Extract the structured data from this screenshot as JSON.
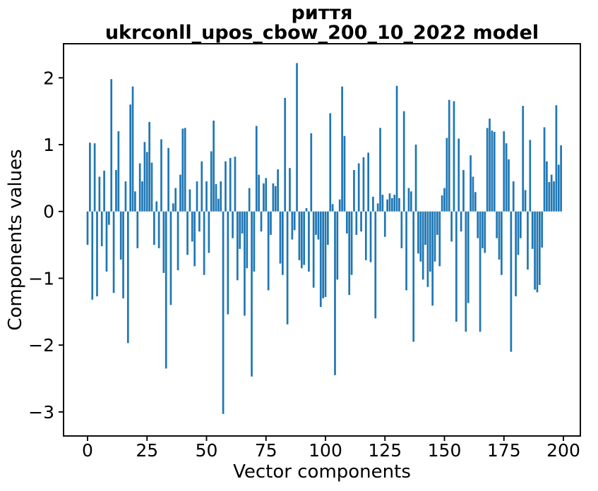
{
  "figure": {
    "background": "#ffffff",
    "spine_color": "#000000",
    "text_color": "#000000"
  },
  "chart_data": {
    "type": "bar",
    "title_line1": "риття",
    "title_line2": "ukrconll_upos_cbow_200_10_2022 model",
    "xlabel": "Vector components",
    "ylabel": "Components values",
    "bar_color": "#1f77b4",
    "grid": false,
    "legend_position": "none",
    "x_ticks": [
      0,
      25,
      50,
      75,
      100,
      125,
      150,
      175,
      200
    ],
    "y_ticks": [
      2,
      1,
      0,
      -1,
      -2,
      -3
    ],
    "xlim": [
      -10.09,
      207.12
    ],
    "ylim": [
      -3.36,
      2.51
    ],
    "n_components": 200,
    "values": [
      -0.5,
      1.03,
      -1.32,
      1.02,
      -1.27,
      0.52,
      -0.52,
      0.61,
      -0.9,
      -0.2,
      1.98,
      -1.22,
      0.62,
      1.2,
      -0.72,
      -1.3,
      0.45,
      -1.97,
      1.6,
      1.87,
      0.3,
      -0.55,
      0.72,
      0.45,
      1.04,
      0.89,
      1.34,
      0.73,
      -0.5,
      0.15,
      -0.55,
      1.08,
      -0.92,
      -2.35,
      0.95,
      -1.4,
      0.12,
      0.35,
      -0.88,
      0.55,
      1.24,
      1.25,
      -0.65,
      0.33,
      -0.45,
      -0.82,
      0.45,
      -0.3,
      0.75,
      -0.95,
      0.45,
      -0.62,
      0.9,
      1.36,
      0.41,
      0.19,
      0.45,
      -3.03,
      0.75,
      -1.54,
      0.8,
      -0.4,
      0.82,
      -1.03,
      -0.56,
      -0.33,
      -1.56,
      -0.85,
      0.35,
      -2.47,
      -0.9,
      1.28,
      0.55,
      -0.3,
      0.42,
      0.5,
      -1.18,
      -0.35,
      0.42,
      0.38,
      0.63,
      -0.78,
      -0.95,
      1.7,
      -1.69,
      0.65,
      -0.42,
      -0.28,
      2.22,
      -0.73,
      -0.85,
      -0.8,
      0.05,
      -0.9,
      1.17,
      -1.14,
      -0.35,
      -0.42,
      -1.43,
      -1.3,
      -1.28,
      -0.5,
      1.47,
      0.11,
      -2.45,
      -1.02,
      0.18,
      1.87,
      1.13,
      -0.33,
      -1.25,
      -0.95,
      0.62,
      -0.35,
      0.72,
      -0.3,
      0.81,
      -0.73,
      0.88,
      -0.76,
      0.22,
      -1.6,
      0.12,
      1.25,
      0.25,
      -0.38,
      0.18,
      0.27,
      0.2,
      0.25,
      1.88,
      0.2,
      -0.55,
      1.5,
      -1.18,
      0.35,
      0.3,
      -1.95,
      1.0,
      -0.63,
      -0.75,
      -1.02,
      -0.5,
      -1.13,
      -0.9,
      -1.41,
      -0.75,
      -0.35,
      -0.82,
      0.24,
      0.35,
      1.1,
      1.67,
      -0.45,
      1.65,
      -1.65,
      1.09,
      -0.3,
      0.62,
      -1.8,
      -1.37,
      0.84,
      0.52,
      0.29,
      -0.4,
      -1.8,
      -0.55,
      -0.62,
      1.25,
      1.39,
      1.21,
      1.19,
      -0.4,
      -0.72,
      -0.95,
      1.2,
      1.02,
      0.78,
      -2.1,
      0.45,
      -1.27,
      -0.65,
      -0.4,
      1.58,
      0.32,
      -0.87,
      1.07,
      -0.56,
      -1.17,
      -1.21,
      -1.1,
      -0.54,
      1.26,
      0.75,
      0.44,
      0.55,
      0.45,
      1.59,
      0.7,
      0.99
    ]
  }
}
